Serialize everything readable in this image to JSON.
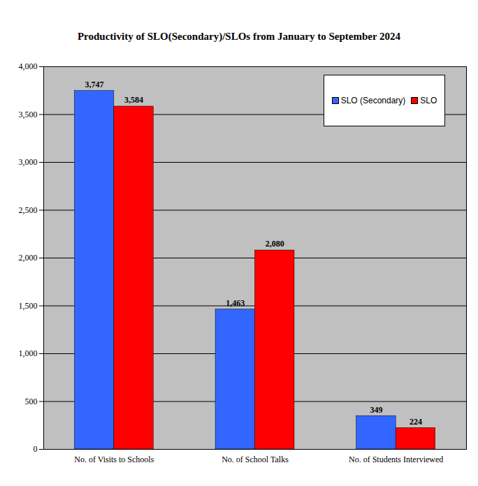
{
  "chart_data": {
    "type": "bar",
    "title": "Productivity of SLO(Secondary)/SLOs from January to September 2024",
    "categories": [
      "No. of Visits to Schools",
      "No. of School Talks",
      "No. of Students Interviewed"
    ],
    "series": [
      {
        "name": "SLO (Secondary)",
        "color": "#3366ff",
        "values": [
          3747,
          1463,
          349
        ],
        "value_labels": [
          "3,747",
          "1,463",
          "349"
        ]
      },
      {
        "name": "SLO",
        "color": "#ff0000",
        "values": [
          3584,
          2080,
          224
        ],
        "value_labels": [
          "3,584",
          "2,080",
          "224"
        ]
      }
    ],
    "ylim": [
      0,
      4000
    ],
    "yticks": [
      0,
      500,
      {
        "value": 1000,
        "label": "1,000"
      },
      {
        "value": 1500,
        "label": "1,500"
      },
      {
        "value": 2000,
        "label": "2,000"
      },
      {
        "value": 2500,
        "label": "2,500"
      },
      {
        "value": 3000,
        "label": "3,000"
      },
      {
        "value": 3500,
        "label": "3,500"
      },
      {
        "value": 4000,
        "label": "4,000"
      }
    ],
    "grid": true,
    "legend": "top-right",
    "data_labels": true
  }
}
